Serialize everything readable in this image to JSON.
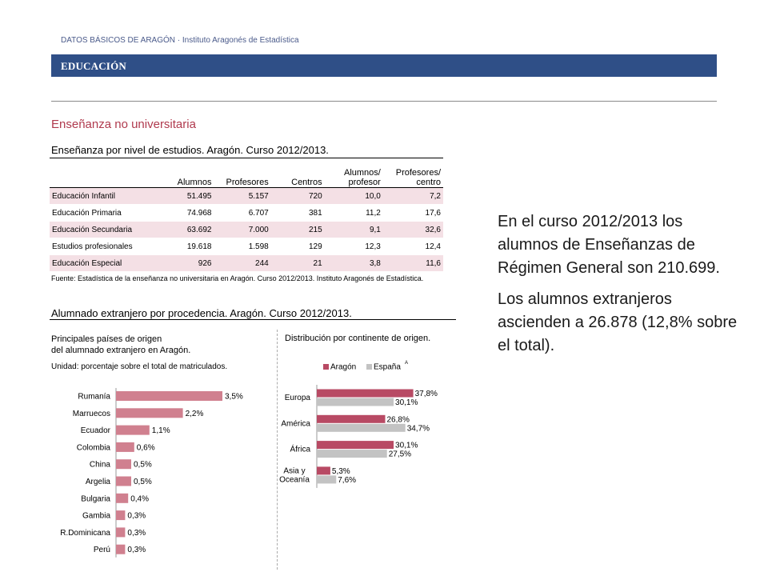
{
  "header": {
    "topline": "DATOS BÁSICOS DE ARAGÓN  ·  Instituto Aragonés de Estadística",
    "banner": "EDUCACIÓN"
  },
  "section_title": "Enseñanza no universitaria",
  "table": {
    "title": "Enseñanza por nivel de estudios. Aragón. Curso 2012/2013.",
    "columns": [
      "",
      "Alumnos",
      "Profesores",
      "Centros",
      "Alumnos/\nprofesor",
      "Profesores/\ncentro"
    ],
    "rows": [
      [
        "Educación Infantil",
        "51.495",
        "5.157",
        "720",
        "10,0",
        "7,2"
      ],
      [
        "Educación Primaria",
        "74.968",
        "6.707",
        "381",
        "11,2",
        "17,6"
      ],
      [
        "Educación Secundaria",
        "63.692",
        "7.000",
        "215",
        "9,1",
        "32,6"
      ],
      [
        "Estudios profesionales",
        "19.618",
        "1.598",
        "129",
        "12,3",
        "12,4"
      ],
      [
        "Educación Especial",
        "926",
        "244",
        "21",
        "3,8",
        "11,6"
      ]
    ],
    "source": "Fuente: Estadística de la enseñanza no universitaria en Aragón. Curso 2012/2013. Instituto Aragonés de Estadística."
  },
  "foreign": {
    "title": "Alumnado extranjero por procedencia. Aragón. Curso 2012/2013.",
    "left_subtitle": "Principales países de origen\ndel alumnado extranjero en Aragón.",
    "left_unit": "Unidad: porcentaje sobre el total de matriculados.",
    "right_subtitle": "Distribución por continente de origen."
  },
  "info": {
    "p1": "En el curso 2012/2013 los alumnos de Enseñanzas de Régimen General son 210.699.",
    "p2": "Los alumnos extranjeros ascienden a 26.878 (12,8% sobre el total)."
  },
  "colors": {
    "country_bar": "#d0808f",
    "aragon": "#b84a64",
    "espana": "#c3c3c3",
    "banner": "#2f4f87",
    "row_shade": "#f4e0e5"
  },
  "chart_data": [
    {
      "type": "bar",
      "orientation": "horizontal",
      "categories": [
        "Rumanía",
        "Marruecos",
        "Ecuador",
        "Colombia",
        "China",
        "Argelia",
        "Bulgaria",
        "Gambia",
        "R.Dominicana",
        "Perú"
      ],
      "values": [
        3.5,
        2.2,
        1.1,
        0.6,
        0.5,
        0.5,
        0.4,
        0.3,
        0.3,
        0.3
      ],
      "labels": [
        "3,5%",
        "2,2%",
        "1,1%",
        "0,6%",
        "0,5%",
        "0,5%",
        "0,4%",
        "0,3%",
        "0,3%",
        "0,3%"
      ],
      "grid": false
    },
    {
      "type": "bar",
      "orientation": "horizontal",
      "categories": [
        "Europa",
        "América",
        "África",
        "Asia y\nOceanía"
      ],
      "series": [
        {
          "name": "Aragón",
          "values": [
            37.8,
            26.8,
            30.1,
            5.3
          ],
          "labels": [
            "37,8%",
            "26,8%",
            "30,1%",
            "5,3%"
          ]
        },
        {
          "name": "España",
          "values": [
            30.1,
            34.7,
            27.5,
            7.6
          ],
          "labels": [
            "30,1%",
            "34,7%",
            "27,5%",
            "7,6%"
          ]
        }
      ],
      "legend": "top",
      "legend_note": "A",
      "grid": false
    }
  ]
}
